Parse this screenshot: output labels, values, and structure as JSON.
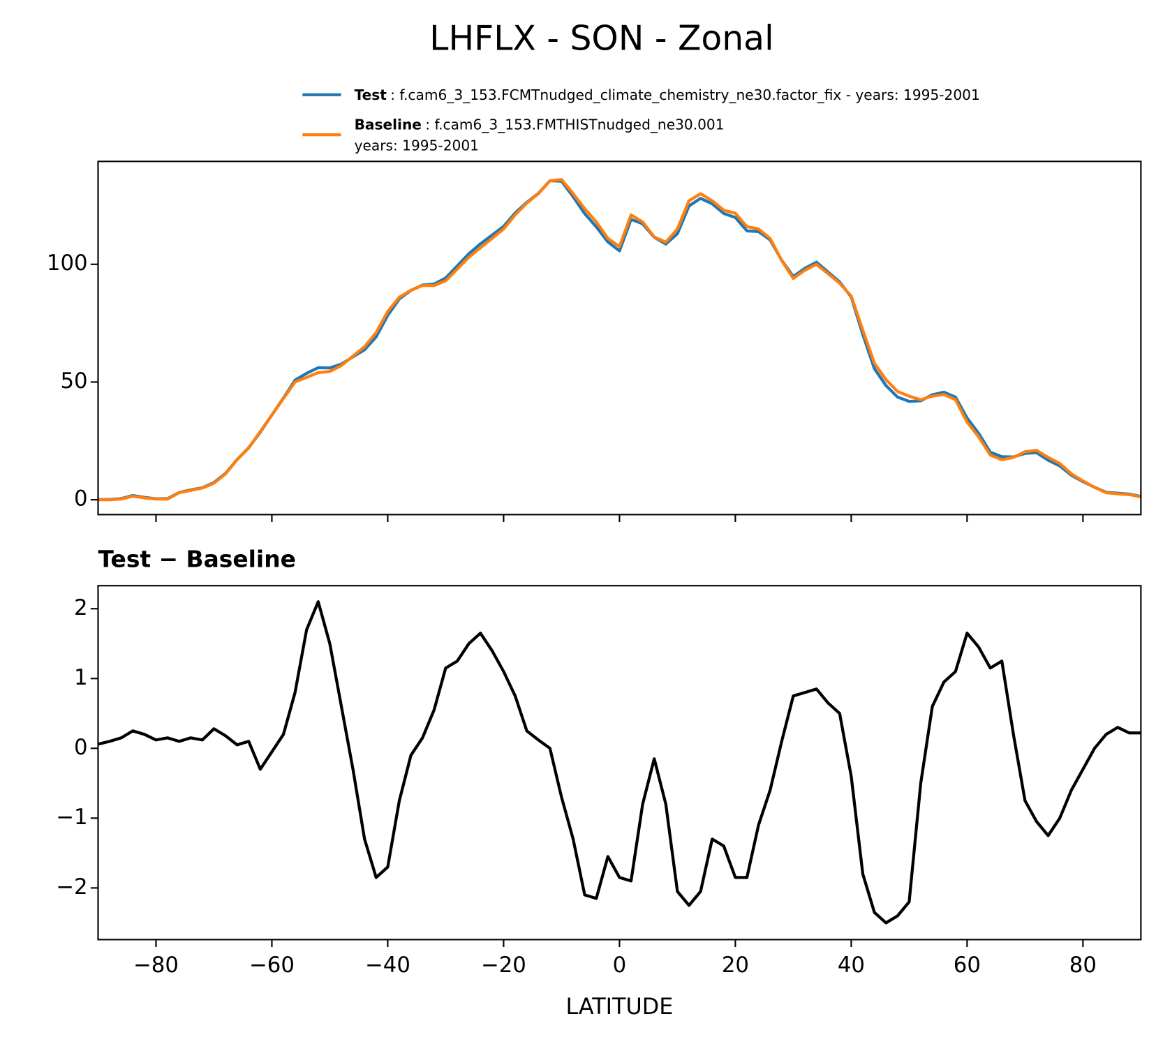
{
  "title": "LHFLX - SON - Zonal",
  "chart_data": [
    {
      "type": "line",
      "x": [
        -90,
        -88,
        -86,
        -84,
        -82,
        -80,
        -78,
        -76,
        -74,
        -72,
        -70,
        -68,
        -66,
        -64,
        -62,
        -60,
        -58,
        -56,
        -54,
        -52,
        -50,
        -48,
        -46,
        -44,
        -42,
        -40,
        -38,
        -36,
        -34,
        -32,
        -30,
        -28,
        -26,
        -24,
        -22,
        -20,
        -18,
        -16,
        -14,
        -12,
        -10,
        -8,
        -6,
        -4,
        -2,
        0,
        2,
        4,
        6,
        8,
        10,
        12,
        14,
        16,
        18,
        20,
        22,
        24,
        26,
        28,
        30,
        32,
        34,
        36,
        38,
        40,
        42,
        44,
        46,
        48,
        50,
        52,
        54,
        56,
        58,
        60,
        62,
        64,
        66,
        68,
        70,
        72,
        74,
        76,
        78,
        80,
        82,
        84,
        86,
        88,
        90
      ],
      "series": [
        {
          "name": "Test",
          "label_lines": [
            ": f.cam6_3_153.FCMTnudged_climate_chemistry_ne30.factor_fix - years: 1995-2001"
          ],
          "color": "#1f77b4",
          "values": [
            0.1,
            0.1,
            0.5,
            1.8,
            1.0,
            0.4,
            0.5,
            3.1,
            4.2,
            5.1,
            7.3,
            11.2,
            17.1,
            22.1,
            28.7,
            36.0,
            43.2,
            50.8,
            53.7,
            56.1,
            56.0,
            57.6,
            60.7,
            63.7,
            69.2,
            78.3,
            85.3,
            88.9,
            91.2,
            91.6,
            94.2,
            99.3,
            104.5,
            108.7,
            112.4,
            116.1,
            121.8,
            126.3,
            130.1,
            135.5,
            135.3,
            128.7,
            121.5,
            115.9,
            109.5,
            105.7,
            119.1,
            117.2,
            111.5,
            108.6,
            113.0,
            124.8,
            128.0,
            125.7,
            121.6,
            119.9,
            114.2,
            113.9,
            110.4,
            101.7,
            94.8,
            98.3,
            100.9,
            96.7,
            92.5,
            86.1,
            70.2,
            55.7,
            48.5,
            43.6,
            41.8,
            42.0,
            44.6,
            45.7,
            43.6,
            34.7,
            28.2,
            20.2,
            18.3,
            18.2,
            19.7,
            20.0,
            16.8,
            14.4,
            10.4,
            7.7,
            5.3,
            3.2,
            2.8,
            2.4,
            1.4
          ]
        },
        {
          "name": "Baseline",
          "label_lines": [
            ": f.cam6_3_153.FMTHISTnudged_ne30.001",
            "years: 1995-2001"
          ],
          "color": "#ff7f0e",
          "values": [
            0,
            0,
            0.3,
            1.5,
            0.8,
            0.3,
            0.3,
            3,
            4,
            5,
            7,
            11,
            17,
            22,
            29,
            36,
            43,
            50,
            52,
            54,
            54.5,
            57,
            61,
            65,
            71,
            80,
            86,
            89,
            91,
            91,
            93,
            98,
            103,
            107,
            111,
            115,
            121,
            126,
            130,
            135.5,
            136,
            130,
            123.6,
            118,
            111,
            107.5,
            121,
            118,
            111.6,
            109.4,
            115,
            127,
            130,
            127,
            123,
            121.7,
            116,
            115,
            111,
            101.6,
            94,
            97.5,
            100,
            96,
            92,
            86.5,
            72,
            58,
            51,
            46,
            44,
            42.5,
            44,
            44.7,
            42.5,
            33,
            26.7,
            19,
            17,
            18,
            20.4,
            21,
            18,
            15.4,
            11,
            8,
            5.3,
            3,
            2.5,
            2.2,
            1.2
          ]
        }
      ],
      "xlim": [
        -90,
        90
      ],
      "xticks": [
        -80,
        -60,
        -40,
        -20,
        0,
        20,
        40,
        60,
        80
      ],
      "ylim": [
        -6.3,
        143.7
      ],
      "yticks": [
        0,
        50,
        100
      ]
    },
    {
      "type": "line",
      "title": "Test − Baseline",
      "xlabel": "LATITUDE",
      "x": [
        -90,
        -88,
        -86,
        -84,
        -82,
        -80,
        -78,
        -76,
        -74,
        -72,
        -70,
        -68,
        -66,
        -64,
        -62,
        -60,
        -58,
        -56,
        -54,
        -52,
        -50,
        -48,
        -46,
        -44,
        -42,
        -40,
        -38,
        -36,
        -34,
        -32,
        -30,
        -28,
        -26,
        -24,
        -22,
        -20,
        -18,
        -16,
        -14,
        -12,
        -10,
        -8,
        -6,
        -4,
        -2,
        0,
        2,
        4,
        6,
        8,
        10,
        12,
        14,
        16,
        18,
        20,
        22,
        24,
        26,
        28,
        30,
        32,
        34,
        36,
        38,
        40,
        42,
        44,
        46,
        48,
        50,
        52,
        54,
        56,
        58,
        60,
        62,
        64,
        66,
        68,
        70,
        72,
        74,
        76,
        78,
        80,
        82,
        84,
        86,
        88,
        90
      ],
      "series": [
        {
          "color": "#000000",
          "values": [
            0.06,
            0.1,
            0.15,
            0.25,
            0.2,
            0.12,
            0.15,
            0.1,
            0.15,
            0.12,
            0.28,
            0.18,
            0.05,
            0.1,
            -0.3,
            -0.05,
            0.2,
            0.8,
            1.7,
            2.1,
            1.5,
            0.6,
            -0.3,
            -1.3,
            -1.85,
            -1.7,
            -0.75,
            -0.1,
            0.15,
            0.55,
            1.15,
            1.25,
            1.5,
            1.65,
            1.4,
            1.1,
            0.75,
            0.25,
            0.12,
            0.0,
            -0.7,
            -1.3,
            -2.1,
            -2.15,
            -1.55,
            -1.85,
            -1.9,
            -0.8,
            -0.15,
            -0.8,
            -2.05,
            -2.25,
            -2.05,
            -1.3,
            -1.4,
            -1.85,
            -1.85,
            -1.1,
            -0.6,
            0.1,
            0.75,
            0.8,
            0.85,
            0.65,
            0.5,
            -0.4,
            -1.8,
            -2.35,
            -2.5,
            -2.4,
            -2.2,
            -0.5,
            0.6,
            0.95,
            1.1,
            1.65,
            1.45,
            1.15,
            1.25,
            0.2,
            -0.75,
            -1.05,
            -1.25,
            -1.0,
            -0.6,
            -0.3,
            0.0,
            0.2,
            0.3,
            0.22,
            0.22
          ]
        }
      ],
      "xlim": [
        -90,
        90
      ],
      "xticks": [
        {
          "value": -80,
          "label": "−80"
        },
        {
          "value": -60,
          "label": "−60"
        },
        {
          "value": -40,
          "label": "−40"
        },
        {
          "value": -20,
          "label": "−20"
        },
        0,
        20,
        40,
        60,
        80
      ],
      "ylim": [
        -2.74,
        2.33
      ],
      "yticks": [
        {
          "value": -2,
          "label": "−2"
        },
        {
          "value": -1,
          "label": "−1"
        },
        0,
        1,
        2
      ]
    }
  ]
}
